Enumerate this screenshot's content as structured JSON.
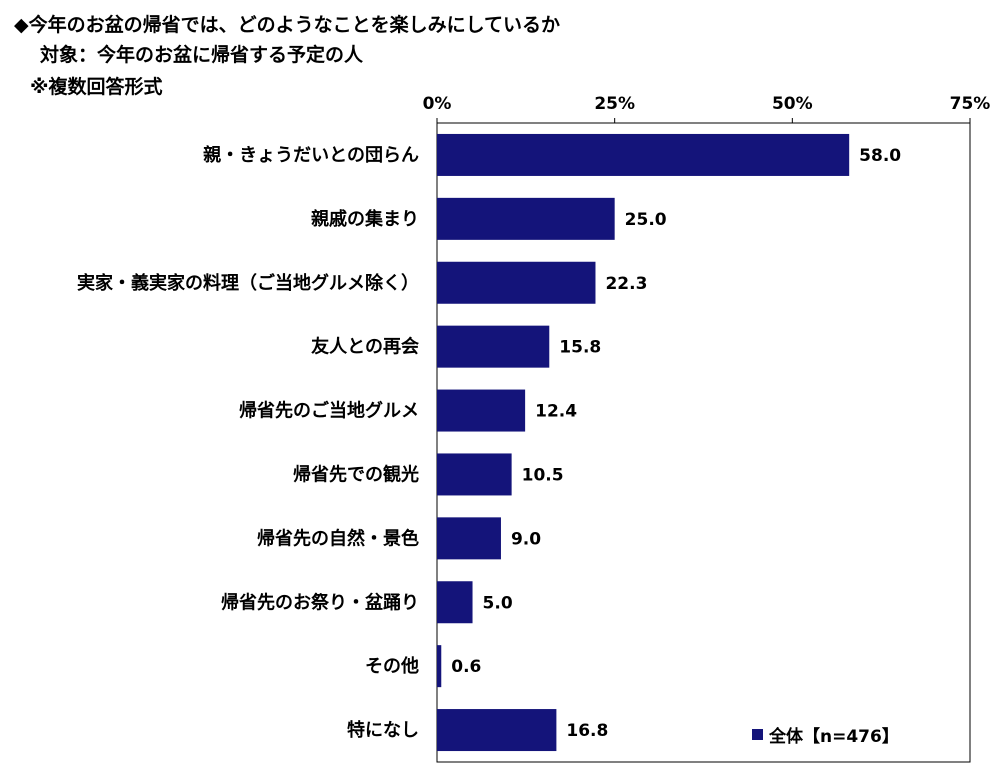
{
  "header": {
    "title": "◆今年のお盆の帰省では、どのようなことを楽しみにしているか",
    "target": "対象：今年のお盆に帰省する予定の人",
    "note": "※複数回答形式"
  },
  "colors": {
    "bar": "#14147a",
    "axis": "#000000"
  },
  "chart_data": {
    "type": "bar",
    "orientation": "horizontal",
    "categories": [
      "親・きょうだいとの団らん",
      "親戚の集まり",
      "実家・義実家の料理（ご当地グルメ除く）",
      "友人との再会",
      "帰省先のご当地グルメ",
      "帰省先での観光",
      "帰省先の自然・景色",
      "帰省先のお祭り・盆踊り",
      "その他",
      "特になし"
    ],
    "values": [
      58.0,
      25.0,
      22.3,
      15.8,
      12.4,
      10.5,
      9.0,
      5.0,
      0.6,
      16.8
    ],
    "value_labels": [
      "58.0",
      "25.0",
      "22.3",
      "15.8",
      "12.4",
      "10.5",
      "9.0",
      "5.0",
      "0.6",
      "16.8"
    ],
    "xlim": [
      0,
      75
    ],
    "ticks": [
      0,
      25,
      50,
      75
    ],
    "tick_labels": [
      "0%",
      "25%",
      "50%",
      "75%"
    ],
    "tick_position": "top",
    "grid": false,
    "legend_placement": "bottom-right",
    "series": [
      {
        "name": "全体【n=476】"
      }
    ]
  }
}
